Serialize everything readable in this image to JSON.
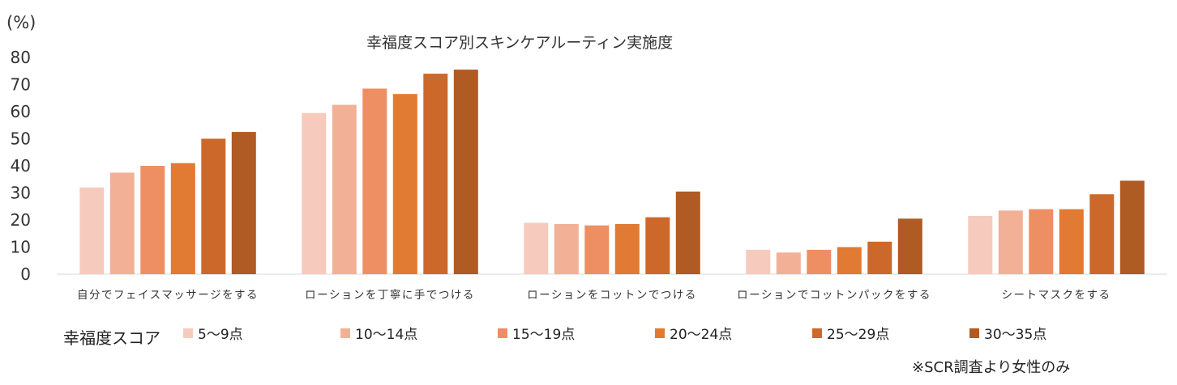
{
  "chart_data": {
    "type": "bar",
    "title": "幸福度スコア別スキンケアルーティン実施度",
    "ylabel": "(%)",
    "xlabel": "",
    "ylim": [
      0,
      80
    ],
    "yticks": [
      0,
      10,
      20,
      30,
      40,
      50,
      60,
      70,
      80
    ],
    "grid": false,
    "legend_title": "幸福度スコア",
    "categories": [
      "自分でフェイスマッサージをする",
      "ローションを丁寧に手でつける",
      "ローションをコットンでつける",
      "ローションでコットンパックをする",
      "シートマスクをする"
    ],
    "series": [
      {
        "name": "5〜9点",
        "color": "#f6cbbd",
        "values": [
          32,
          59.5,
          19,
          9,
          21.5
        ]
      },
      {
        "name": "10〜14点",
        "color": "#f2b096",
        "values": [
          37.5,
          62.5,
          18.5,
          8,
          23.5
        ]
      },
      {
        "name": "15〜19点",
        "color": "#ee8f63",
        "values": [
          40,
          68.5,
          18,
          9,
          24
        ]
      },
      {
        "name": "20〜24点",
        "color": "#e17a32",
        "values": [
          41,
          66.5,
          18.5,
          10,
          24
        ]
      },
      {
        "name": "25〜29点",
        "color": "#cc692a",
        "values": [
          50,
          74,
          21,
          12,
          29.5
        ]
      },
      {
        "name": "30〜35点",
        "color": "#b05a24",
        "values": [
          52.5,
          75.5,
          30.5,
          20.5,
          34.5
        ]
      }
    ]
  },
  "note": "※SCR調査より女性のみ"
}
